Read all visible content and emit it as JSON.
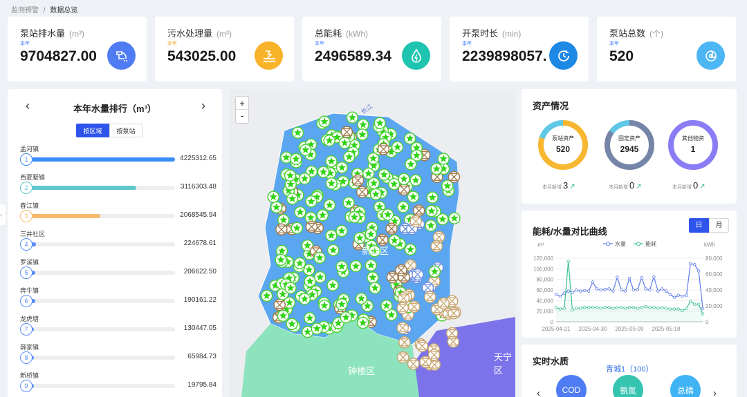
{
  "breadcrumb": {
    "parent": "监测预警",
    "separator": "/",
    "current": "数据总览"
  },
  "kpis": [
    {
      "title": "泵站排水量",
      "unit": "(m³)",
      "year": "本年",
      "value": "9704827.00",
      "year_color": "#3a7bff",
      "icon": "pump-drain-icon",
      "icon_bg": "#4f7cf2"
    },
    {
      "title": "污水处理量",
      "unit": "(m³)",
      "year": "本年",
      "value": "543025.00",
      "year_color": "#f5a623",
      "icon": "sewage-treatment-icon",
      "icon_bg": "#f8b32a"
    },
    {
      "title": "总能耗",
      "unit": "(kWh)",
      "year": "本年",
      "value": "2496589.34",
      "year_color": "#3a7bff",
      "icon": "energy-drop-icon",
      "icon_bg": "#1fc4b0"
    },
    {
      "title": "开泵时长",
      "unit": "(min)",
      "year": "本年",
      "value": "2239898057.",
      "year_color": "#3a7bff",
      "icon": "clock-icon",
      "icon_bg": "#1e88e5"
    },
    {
      "title": "泵站总数",
      "unit": "(个)",
      "year": "本年",
      "value": "520",
      "year_color": "#3a7bff",
      "icon": "pump-count-icon",
      "icon_bg": "#4db6f5"
    }
  ],
  "ranking": {
    "title": "本年水量排行（m³）",
    "tabs": [
      "按区域",
      "按泵站"
    ],
    "active_tab": "按区域",
    "max": 4225312.65,
    "items": [
      {
        "rank": "1",
        "name": "孟河镇",
        "value": "4225312.65",
        "n": 4225312.65,
        "color": "#3a8ef6"
      },
      {
        "rank": "2",
        "name": "西夏墅镇",
        "value": "3116303.48",
        "n": 3116303.48,
        "color": "#5ec8cd"
      },
      {
        "rank": "3",
        "name": "春江镇",
        "value": "2068545.94",
        "n": 2068545.94,
        "color": "#f7b96b"
      },
      {
        "rank": "4",
        "name": "三井社区",
        "value": "224678.61",
        "n": 224678.61,
        "color": "#5b8ff9"
      },
      {
        "rank": "5",
        "name": "罗溪镇",
        "value": "206622.50",
        "n": 206622.5,
        "color": "#5b8ff9"
      },
      {
        "rank": "6",
        "name": "奔牛镇",
        "value": "190161.22",
        "n": 190161.22,
        "color": "#5b8ff9"
      },
      {
        "rank": "7",
        "name": "龙虎塘",
        "value": "130447.05",
        "n": 130447.05,
        "color": "#5b8ff9"
      },
      {
        "rank": "8",
        "name": "薛家镇",
        "value": "65984.73",
        "n": 65984.73,
        "color": "#5b8ff9"
      },
      {
        "rank": "9",
        "name": "新桥镇",
        "value": "19795.84",
        "n": 19795.84,
        "color": "#5b8ff9"
      }
    ]
  },
  "map": {
    "zoom_in": "+",
    "zoom_out": "-",
    "labels": {
      "river": "长江",
      "district_main": "新北区",
      "district_south": "钟楼区",
      "district_east": "天宁区"
    }
  },
  "assets": {
    "title": "资产情况",
    "items": [
      {
        "label": "泵站资产",
        "value": "520",
        "new_label": "本月新增",
        "new_value": "3",
        "color": "#f7b731",
        "frac": 0.8
      },
      {
        "label": "固定资产",
        "value": "2945",
        "new_label": "本月新增",
        "new_value": "0",
        "color": "#7585a8",
        "frac": 0.85
      },
      {
        "label": "其他物资",
        "value": "1",
        "new_label": "本月新增",
        "new_value": "0",
        "color": "#8a7cf5",
        "frac": 1.0
      }
    ]
  },
  "energy_chart": {
    "title": "能耗/水量对比曲线",
    "tabs": [
      "日",
      "月"
    ],
    "active_tab": "日"
  },
  "chart_data": {
    "type": "line",
    "left_unit": "m³",
    "right_unit": "kWh",
    "legend": [
      "水量",
      "能耗"
    ],
    "x_ticks": [
      "2025-04-21",
      "2025-04-30",
      "2025-05-09",
      "2025-05-18"
    ],
    "y_left_ticks": [
      "0",
      "20,000",
      "40,000",
      "60,000",
      "80,000",
      "100,000",
      "120,000"
    ],
    "y_right_ticks": [
      "0",
      "20,000",
      "40,000",
      "60,000",
      "80,000"
    ],
    "ylim_left": [
      0,
      120000
    ],
    "ylim_right": [
      0,
      80000
    ],
    "series": [
      {
        "name": "水量",
        "axis": "left",
        "color": "#5b7be9",
        "values": [
          52000,
          48000,
          54000,
          58000,
          55000,
          60000,
          58000,
          59000,
          58000,
          75000,
          62000,
          60000,
          61000,
          62000,
          58000,
          84000,
          60000,
          58000,
          82000,
          60000,
          61000,
          83000,
          62000,
          60000,
          85000,
          58000,
          62000,
          58000,
          52000,
          46000,
          50000,
          48000,
          50000,
          110000,
          108000,
          96000,
          25000
        ]
      },
      {
        "name": "能耗",
        "axis": "right",
        "color": "#3dbf9d",
        "values": [
          18000,
          16000,
          17000,
          76000,
          15000,
          17000,
          17000,
          18000,
          18000,
          18000,
          18000,
          17000,
          18000,
          18000,
          17000,
          18000,
          18000,
          17000,
          18000,
          18000,
          17000,
          18000,
          19000,
          18000,
          18000,
          17000,
          18000,
          17000,
          16000,
          16000,
          16000,
          14000,
          17000,
          26000,
          22000,
          22000,
          10000
        ]
      }
    ]
  },
  "water_quality": {
    "title": "实时水质",
    "station": "青城1（100）",
    "items": [
      {
        "label": "COD",
        "color": "#4f7cf2"
      },
      {
        "label": "氨氮",
        "color": "#35c4b0"
      },
      {
        "label": "总磷",
        "color": "#3fb3f4"
      }
    ]
  }
}
